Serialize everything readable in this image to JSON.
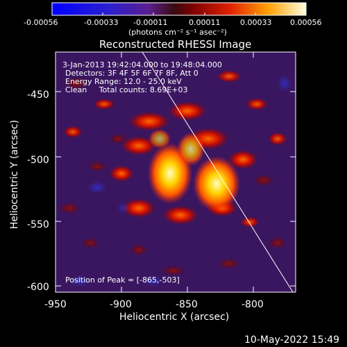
{
  "colorbar": {
    "tick_labels": [
      "-0.00056",
      "-0.00033",
      "-0.00011",
      "0.00011",
      "0.00033",
      "0.00056"
    ],
    "units": "(photons cm⁻² s⁻¹ asec⁻²)"
  },
  "image": {
    "title": "Reconstructed RHESSI Image",
    "info_lines": [
      "3-Jan-2013 19:42:04.000 to 19:48:04.000",
      "Detectors: 3F 4F 5F 6F 7F 8F, Att 0",
      "Energy Range: 12.0 - 25.0 keV",
      "Clean     Total counts: 8.69E+03"
    ],
    "peak_label": "Position of Peak = [-865,-503]"
  },
  "axes": {
    "xlabel": "Heliocentric X (arcsec)",
    "ylabel": "Heliocentric Y (arcsec)",
    "xticks": [
      "-950",
      "-900",
      "-850",
      "-800"
    ],
    "yticks": [
      "-450",
      "-500",
      "-550",
      "-600"
    ]
  },
  "footer": {
    "timestamp": "10-May-2022 15:49"
  }
}
